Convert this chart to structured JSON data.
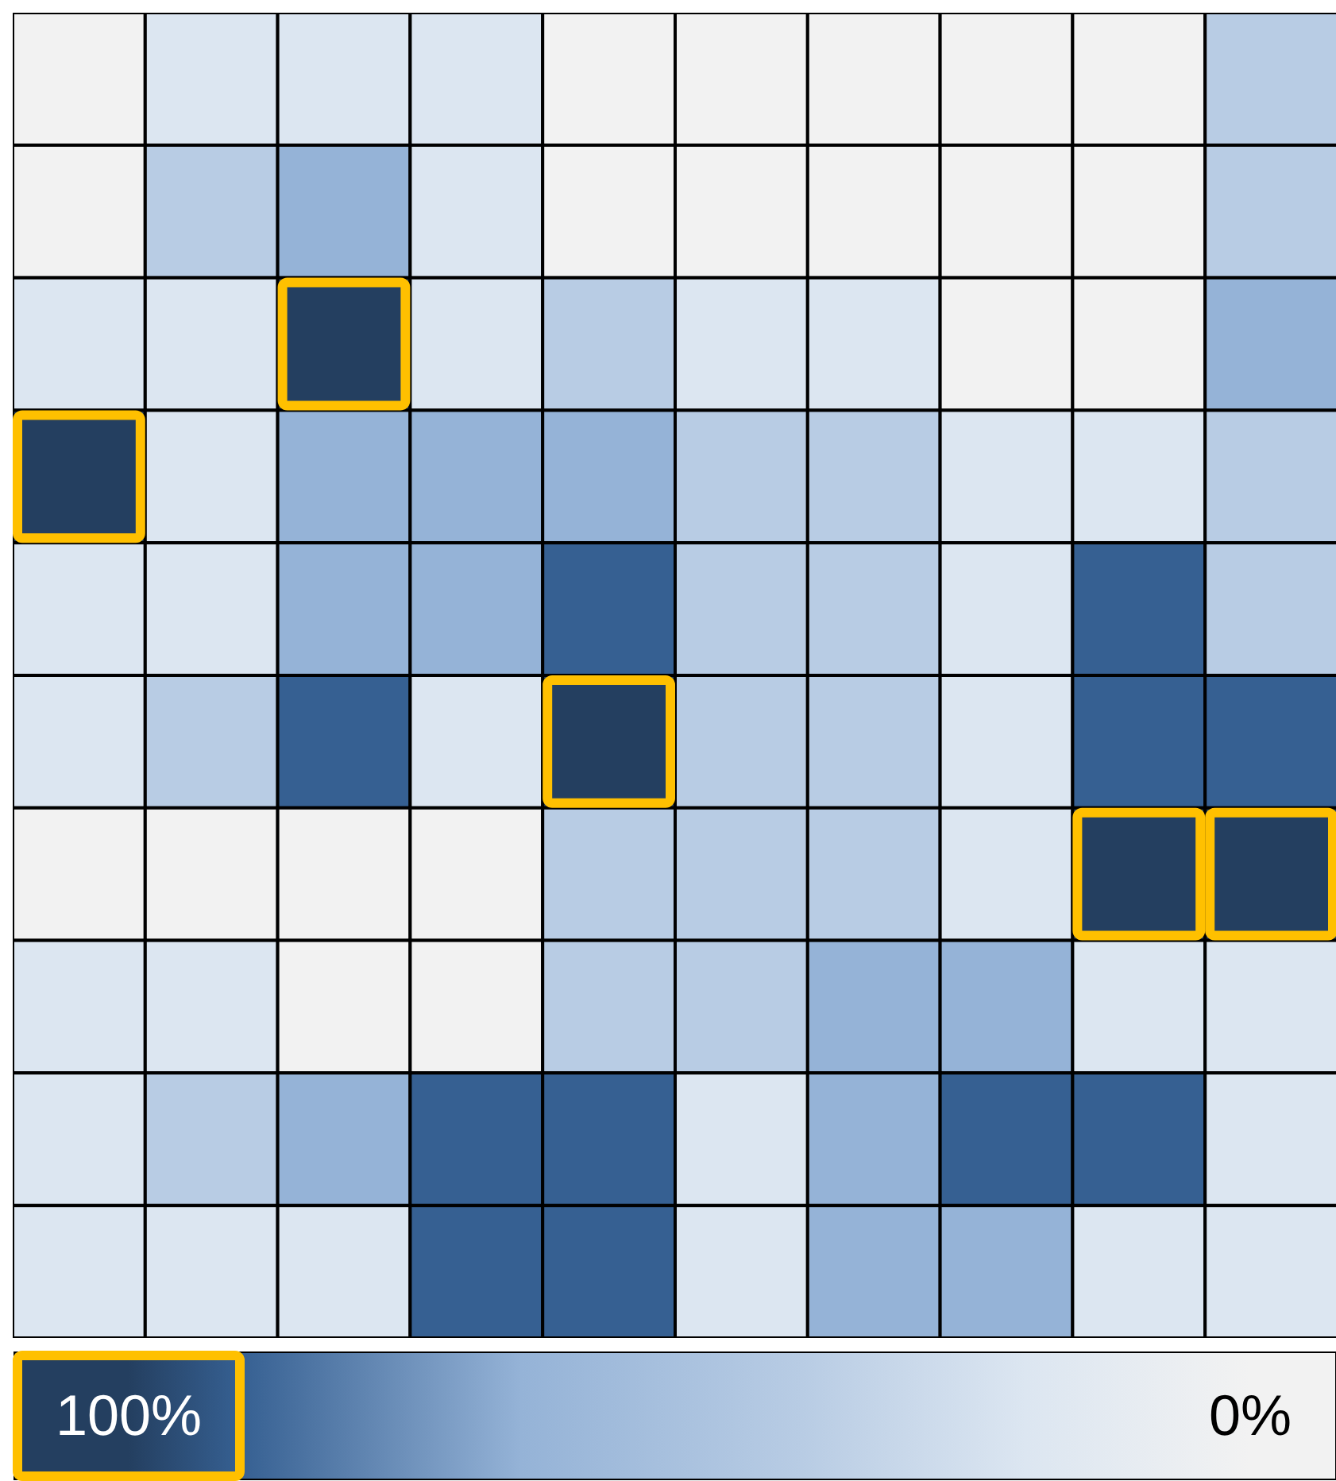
{
  "chart_data": {
    "type": "heatmap",
    "categories": [
      null,
      null,
      null,
      null,
      null,
      null,
      null,
      null,
      null,
      null
    ],
    "y_categories": [
      null,
      null,
      null,
      null,
      null,
      null,
      null,
      null,
      null,
      null
    ],
    "cells": [
      [
        0,
        20,
        20,
        20,
        0,
        0,
        0,
        0,
        0,
        40
      ],
      [
        0,
        40,
        65,
        20,
        0,
        0,
        0,
        0,
        0,
        40
      ],
      [
        20,
        20,
        100,
        20,
        40,
        20,
        20,
        0,
        0,
        65
      ],
      [
        100,
        20,
        65,
        65,
        65,
        40,
        40,
        20,
        20,
        40
      ],
      [
        20,
        20,
        65,
        65,
        90,
        40,
        40,
        20,
        90,
        40
      ],
      [
        20,
        40,
        90,
        20,
        100,
        40,
        40,
        20,
        90,
        90
      ],
      [
        0,
        0,
        0,
        0,
        40,
        40,
        40,
        20,
        100,
        100
      ],
      [
        20,
        20,
        0,
        0,
        40,
        40,
        65,
        65,
        20,
        20
      ],
      [
        20,
        40,
        65,
        90,
        90,
        20,
        65,
        90,
        90,
        20
      ],
      [
        20,
        20,
        20,
        90,
        90,
        20,
        65,
        65,
        20,
        20
      ]
    ],
    "clim": [
      100,
      0
    ],
    "cticks": [
      {
        "value": 100,
        "label": "100%"
      },
      {
        "value": 0,
        "label": "0%"
      }
    ]
  }
}
